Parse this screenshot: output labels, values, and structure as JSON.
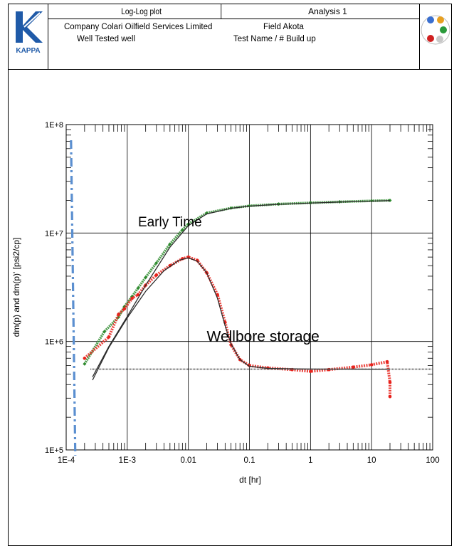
{
  "header": {
    "logo_text": "KAPPA",
    "plot_title": "Log-Log plot",
    "analysis": "Analysis 1",
    "company_label": "Company",
    "company_value": "Colari Oilfield Services Limited",
    "field_label": "Field",
    "field_value": "Akota",
    "well_label": "Well",
    "well_value": "Tested well",
    "test_label": "Test Name / #",
    "test_value": "Build up"
  },
  "chart_data": {
    "type": "scatter",
    "title": "",
    "xlabel": "dt [hr]",
    "ylabel": "dm(p) and dm(p)'  [psi2/cp]",
    "x_scale": "log",
    "y_scale": "log",
    "xlim": [
      0.0001,
      100
    ],
    "ylim": [
      100000,
      100000000
    ],
    "x_ticks": [
      "1E-4",
      "1E-3",
      "0.01",
      "0.1",
      "1",
      "10",
      "100"
    ],
    "y_ticks": [
      "1E+5",
      "1E+6",
      "1E+7",
      "1E+8"
    ],
    "grid": true,
    "annotations": [
      {
        "text": "Early Time",
        "x": 0.0015,
        "y": 11500000
      },
      {
        "text": "Wellbore storage",
        "x": 0.02,
        "y": 1000000
      }
    ],
    "series": [
      {
        "kind": "pressure-change-points",
        "color": "#2e8b2e",
        "x": [
          0.0002,
          0.00042,
          0.00072,
          0.0009,
          0.0012,
          0.0015,
          0.002,
          0.003,
          0.005,
          0.008,
          0.01,
          0.02,
          0.05,
          0.1,
          0.3,
          1,
          3,
          10,
          20
        ],
        "y": [
          620000,
          1230000,
          1680000,
          2100000,
          2600000,
          3100000,
          3900000,
          5300000,
          7900000,
          10700000,
          12100000,
          15300000,
          17000000,
          17800000,
          18500000,
          19000000,
          19400000,
          19800000,
          20000000
        ]
      },
      {
        "kind": "derivative-points",
        "color": "#e8231c",
        "x": [
          0.0002,
          0.0005,
          0.00072,
          0.0009,
          0.0012,
          0.0015,
          0.002,
          0.003,
          0.005,
          0.008,
          0.01,
          0.014,
          0.02,
          0.03,
          0.04,
          0.05,
          0.07,
          0.1,
          0.2,
          0.5,
          1,
          2,
          5,
          10,
          18,
          20,
          20
        ],
        "y": [
          700000,
          1100000,
          1780000,
          2000000,
          2500000,
          2700000,
          3300000,
          4100000,
          5000000,
          5800000,
          6000000,
          5600000,
          4300000,
          2700000,
          1500000,
          930000,
          680000,
          600000,
          570000,
          550000,
          530000,
          550000,
          580000,
          610000,
          650000,
          420000,
          310000
        ]
      },
      {
        "kind": "pressure-model",
        "color": "#2b2b2b",
        "x": [
          0.00027,
          0.0005,
          0.001,
          0.002,
          0.005,
          0.01,
          0.02,
          0.05,
          0.1,
          0.3,
          1,
          3,
          10,
          20
        ],
        "y": [
          470000,
          900000,
          1700000,
          3300000,
          7400000,
          11700000,
          15000000,
          16900000,
          17700000,
          18400000,
          18900000,
          19300000,
          19700000,
          19900000
        ]
      },
      {
        "kind": "derivative-model",
        "color": "#2b2b2b",
        "x": [
          0.00027,
          0.0005,
          0.001,
          0.002,
          0.004,
          0.007,
          0.01,
          0.014,
          0.02,
          0.03,
          0.04,
          0.05,
          0.07,
          0.1,
          0.2,
          0.5,
          1,
          3,
          10,
          20
        ],
        "y": [
          440000,
          880000,
          1650000,
          2900000,
          4500000,
          5600000,
          5900000,
          5500000,
          4300000,
          2500000,
          1400000,
          950000,
          680000,
          590000,
          565000,
          560000,
          557000,
          556000,
          555000,
          555000
        ]
      },
      {
        "kind": "stabilization-line",
        "color": "#555555",
        "x": [
          0.00025,
          20
        ],
        "y": [
          555000,
          555000
        ]
      }
    ],
    "vertical_marker": {
      "color": "#5b8fd0",
      "x": 0.00012
    }
  }
}
